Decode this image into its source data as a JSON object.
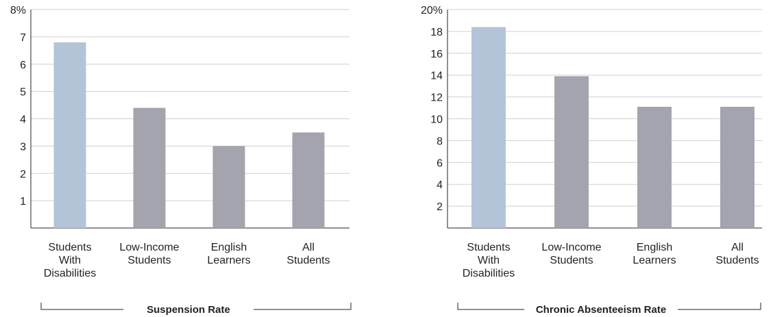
{
  "chart_data": [
    {
      "type": "bar",
      "categories": [
        [
          "Students",
          "With",
          "Disabilities"
        ],
        [
          "Low-Income",
          "Students"
        ],
        [
          "English",
          "Learners"
        ],
        [
          "All",
          "Students"
        ]
      ],
      "values": [
        6.8,
        4.4,
        3.0,
        3.5
      ],
      "bar_colors": [
        "#b3c4d8",
        "#a4a4ae",
        "#a4a4ae",
        "#a4a4ae"
      ],
      "ylim": [
        0,
        8
      ],
      "yticks": [
        "",
        "1",
        "2",
        "3",
        "4",
        "5",
        "6",
        "7",
        "8%"
      ],
      "grid": true,
      "group_label": "Suspension Rate"
    },
    {
      "type": "bar",
      "categories": [
        [
          "Students",
          "With",
          "Disabilities"
        ],
        [
          "Low-Income",
          "Students"
        ],
        [
          "English",
          "Learners"
        ],
        [
          "All",
          "Students"
        ]
      ],
      "values": [
        18.4,
        13.9,
        11.1,
        11.1
      ],
      "bar_colors": [
        "#b3c4d8",
        "#a4a4ae",
        "#a4a4ae",
        "#a4a4ae"
      ],
      "ylim": [
        0,
        20
      ],
      "yticks": [
        "",
        "2",
        "4",
        "6",
        "8",
        "10",
        "12",
        "14",
        "16",
        "18",
        "20%"
      ],
      "grid": true,
      "group_label": "Chronic Absenteeism Rate"
    }
  ]
}
